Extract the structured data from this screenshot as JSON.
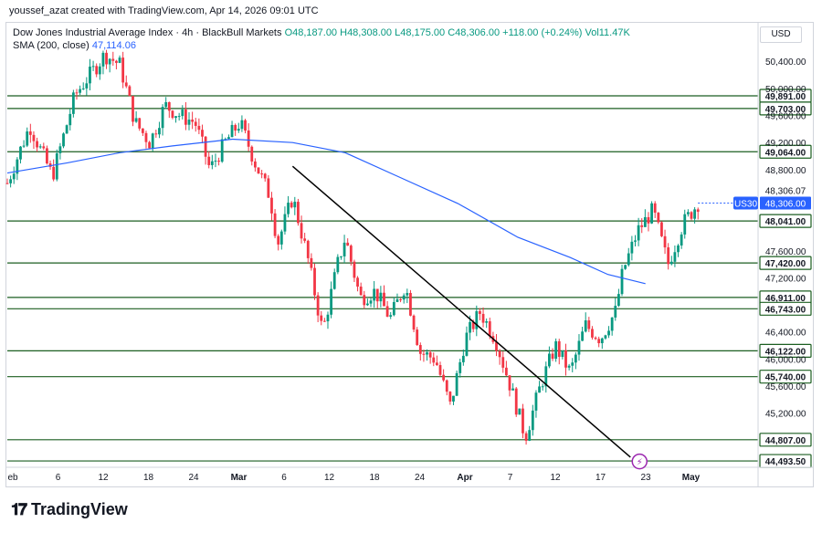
{
  "credit": "youssef_azat created with TradingView.com, Apr 14, 2026 09:01 UTC",
  "legend": {
    "symbol": "Dow Jones Industrial Average Index · 4h · BlackBull Markets",
    "open": "O48,187.00",
    "high": "H48,308.00",
    "low": "L48,175.00",
    "close": "C48,306.00",
    "change": "+118.00 (+0.24%)",
    "volume": "Vol11.47K",
    "sma_label": "SMA (200, close)",
    "sma_value": "47,114.06"
  },
  "currency": "USD",
  "symbol_tag": "US30",
  "logo_text": "TradingView",
  "colors": {
    "up": "#089981",
    "down": "#f23645",
    "sma": "#2962ff",
    "level": "#1b5e20",
    "trend": "#000000",
    "tag": "#2962ff"
  },
  "chart_data": {
    "type": "candlestick",
    "ylim": [
      44400,
      50700
    ],
    "x_ticks": [
      "eb",
      "6",
      "12",
      "18",
      "24",
      "Mar",
      "6",
      "12",
      "18",
      "24",
      "Apr",
      "7",
      "12",
      "17",
      "23",
      "May"
    ],
    "y_ticks": [
      "50,400.00",
      "50,000.00",
      "49,600.00",
      "49,200.00",
      "48,800.00",
      "47,600.00",
      "47,200.00",
      "46,400.00",
      "46,000.00",
      "45,600.00",
      "45,200.00"
    ],
    "y_tick_values": [
      50400,
      50000,
      49600,
      49200,
      48800,
      47600,
      47200,
      46400,
      46000,
      45600,
      45200
    ],
    "levels": [
      "49,891.00",
      "49,703.00",
      "49,064.00",
      "48,041.00",
      "47,420.00",
      "46,911.00",
      "46,743.00",
      "46,122.00",
      "45,740.00",
      "44,807.00",
      "44,493.50"
    ],
    "level_values": [
      49891,
      49703,
      49064,
      48041,
      47420,
      46911,
      46743,
      46122,
      45740,
      44807,
      44493.5
    ],
    "extra_price_label": "48,306.07",
    "extra_price_value": 48306.07,
    "last_price_label": "48,306.00",
    "last_price_value": 48306,
    "sma_points": [
      [
        0,
        48750
      ],
      [
        0.08,
        48900
      ],
      [
        0.15,
        49050
      ],
      [
        0.22,
        49150
      ],
      [
        0.3,
        49250
      ],
      [
        0.38,
        49200
      ],
      [
        0.45,
        49050
      ],
      [
        0.52,
        48700
      ],
      [
        0.6,
        48300
      ],
      [
        0.68,
        47800
      ],
      [
        0.75,
        47500
      ],
      [
        0.8,
        47250
      ],
      [
        0.85,
        47114
      ]
    ],
    "trendline": [
      [
        0.38,
        48850
      ],
      [
        0.83,
        44550
      ]
    ],
    "path_points": [
      [
        0.0,
        48600
      ],
      [
        0.03,
        49450
      ],
      [
        0.06,
        48700
      ],
      [
        0.09,
        49900
      ],
      [
        0.11,
        50200
      ],
      [
        0.13,
        50500
      ],
      [
        0.15,
        50350
      ],
      [
        0.17,
        49500
      ],
      [
        0.19,
        49200
      ],
      [
        0.21,
        49750
      ],
      [
        0.23,
        49600
      ],
      [
        0.25,
        49500
      ],
      [
        0.27,
        48800
      ],
      [
        0.29,
        49200
      ],
      [
        0.31,
        49500
      ],
      [
        0.33,
        48900
      ],
      [
        0.35,
        48400
      ],
      [
        0.36,
        47700
      ],
      [
        0.38,
        48400
      ],
      [
        0.4,
        47500
      ],
      [
        0.42,
        46400
      ],
      [
        0.44,
        47400
      ],
      [
        0.45,
        47800
      ],
      [
        0.47,
        46900
      ],
      [
        0.49,
        47000
      ],
      [
        0.51,
        46600
      ],
      [
        0.53,
        47100
      ],
      [
        0.55,
        46100
      ],
      [
        0.57,
        46000
      ],
      [
        0.59,
        45300
      ],
      [
        0.61,
        46300
      ],
      [
        0.63,
        46700
      ],
      [
        0.65,
        46300
      ],
      [
        0.67,
        45600
      ],
      [
        0.69,
        44850
      ],
      [
        0.71,
        45600
      ],
      [
        0.73,
        46200
      ],
      [
        0.75,
        45800
      ],
      [
        0.77,
        46500
      ],
      [
        0.79,
        46300
      ],
      [
        0.81,
        46700
      ],
      [
        0.82,
        47300
      ],
      [
        0.84,
        47900
      ],
      [
        0.86,
        48200
      ],
      [
        0.88,
        47400
      ],
      [
        0.9,
        48000
      ],
      [
        0.92,
        48306
      ]
    ]
  }
}
